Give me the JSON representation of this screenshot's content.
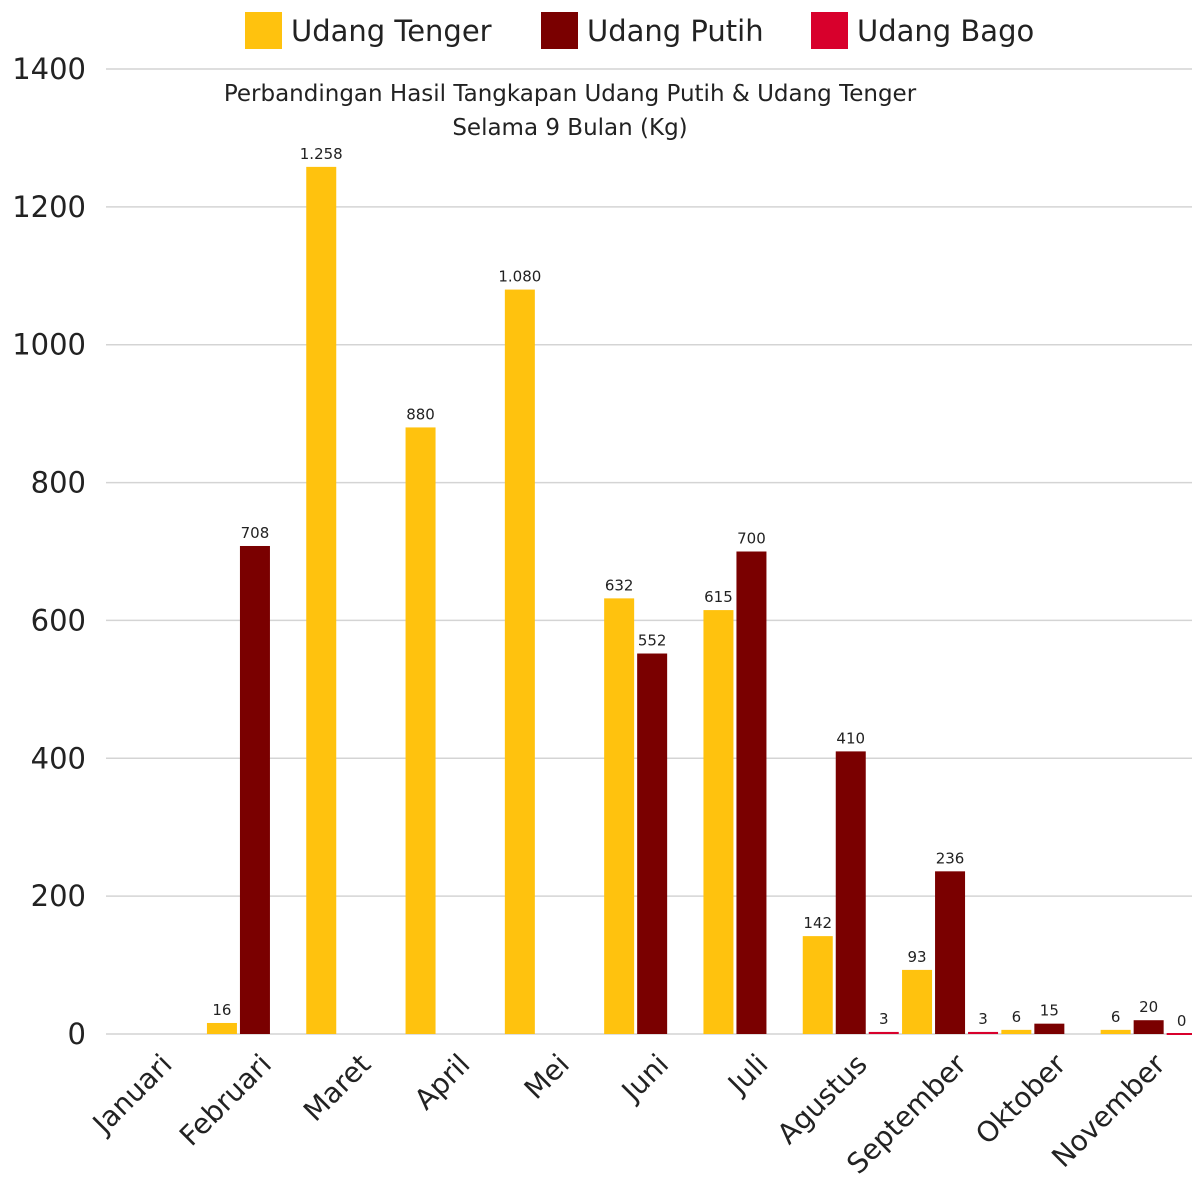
{
  "chart_data": {
    "type": "bar",
    "title": [
      "Perbandingan Hasil Tangkapan Udang Putih & Udang Tenger",
      "Selama 9 Bulan (Kg)"
    ],
    "categories": [
      "Januari",
      "Februari",
      "Maret",
      "April",
      "Mei",
      "Juni",
      "Juli",
      "Agustus",
      "September",
      "Oktober",
      "November"
    ],
    "series": [
      {
        "name": "Udang Tenger",
        "color": "#ffc20e",
        "values": [
          null,
          16,
          1258,
          880,
          1080,
          632,
          615,
          142,
          93,
          6,
          6
        ],
        "value_labels": [
          null,
          "16",
          "1.258",
          "880",
          "1.080",
          "632",
          "615",
          "142",
          "93",
          "6",
          "6"
        ]
      },
      {
        "name": "Udang Putih",
        "color": "#7a0000",
        "values": [
          null,
          708,
          null,
          null,
          null,
          552,
          700,
          410,
          236,
          15,
          20
        ],
        "value_labels": [
          null,
          "708",
          null,
          null,
          null,
          "552",
          "700",
          "410",
          "236",
          "15",
          "20"
        ]
      },
      {
        "name": "Udang Bago",
        "color": "#d8002c",
        "values": [
          null,
          null,
          null,
          null,
          null,
          null,
          null,
          3,
          3,
          null,
          0
        ],
        "value_labels": [
          null,
          null,
          null,
          null,
          null,
          null,
          null,
          "3",
          "3",
          null,
          "0"
        ]
      }
    ],
    "ylim": [
      0,
      1400
    ],
    "yticks": [
      0,
      200,
      400,
      600,
      800,
      1000,
      1200,
      1400
    ],
    "grid": true,
    "legend": "top"
  }
}
